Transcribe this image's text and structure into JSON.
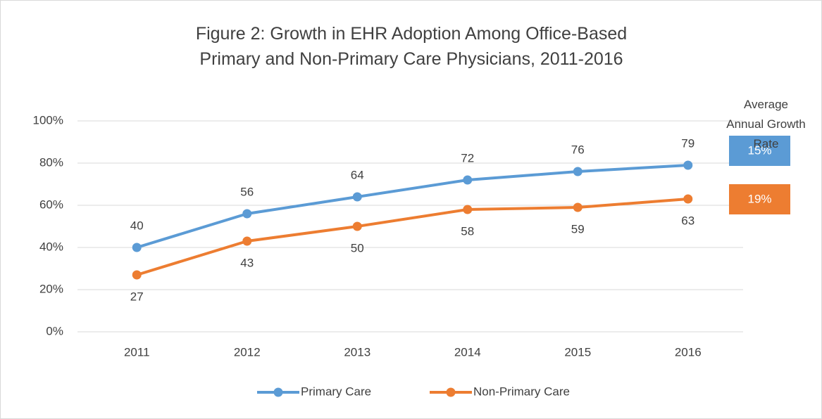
{
  "chart_data": {
    "type": "line",
    "title": "Figure 2: Growth in EHR Adoption Among Office-Based Primary and Non-Primary Care Physicians, 2011-2016",
    "categories": [
      "2011",
      "2012",
      "2013",
      "2014",
      "2015",
      "2016"
    ],
    "series": [
      {
        "name": "Primary Care",
        "color": "#5b9bd5",
        "values": [
          40,
          56,
          64,
          72,
          76,
          79
        ]
      },
      {
        "name": "Non-Primary Care",
        "color": "#ed7d31",
        "values": [
          27,
          43,
          50,
          58,
          59,
          63
        ]
      }
    ],
    "ylim": [
      0,
      100
    ],
    "yticks": [
      {
        "value": 0,
        "label": "0%"
      },
      {
        "value": 20,
        "label": "20%"
      },
      {
        "value": 40,
        "label": "40%"
      },
      {
        "value": 60,
        "label": "60%"
      },
      {
        "value": 80,
        "label": "80%"
      },
      {
        "value": 100,
        "label": "100%"
      }
    ],
    "grid": true,
    "legend": "bottom",
    "annotation": {
      "text": "Average Annual Growth Rate",
      "values": [
        15,
        19
      ],
      "value_labels": [
        "15%",
        "19%"
      ]
    }
  }
}
